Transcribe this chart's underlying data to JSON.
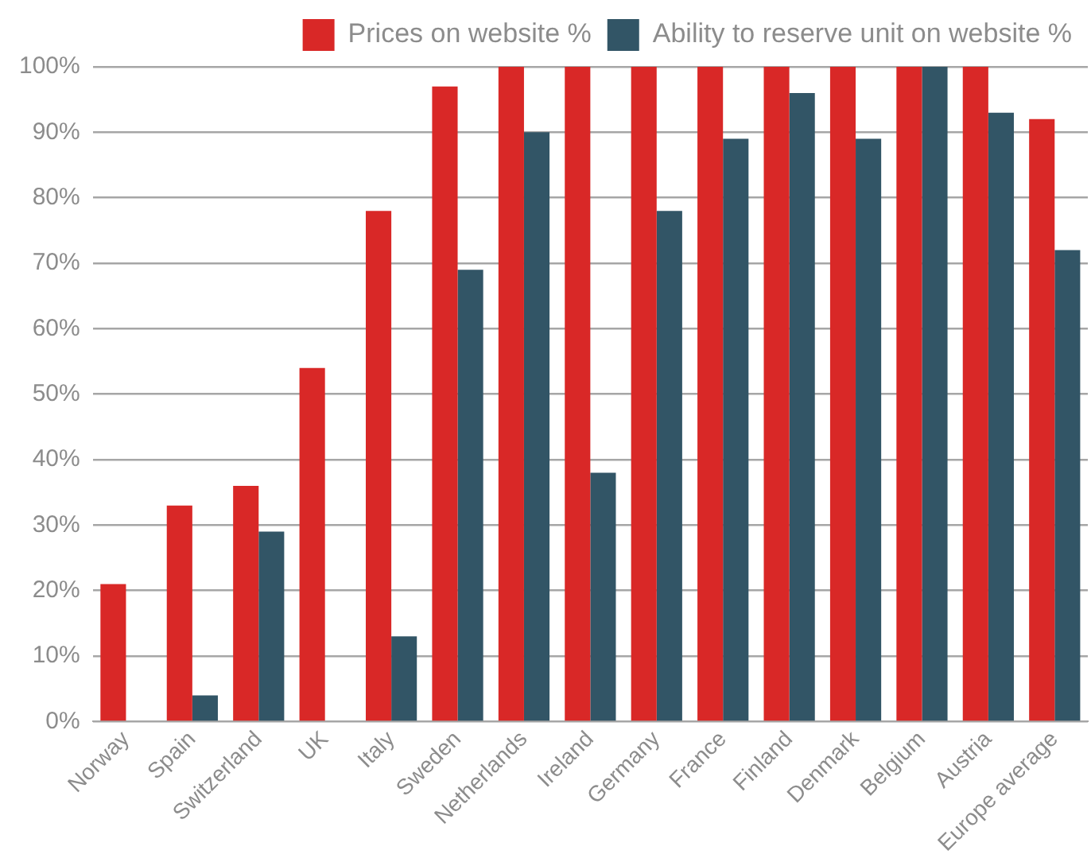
{
  "chart_data": {
    "type": "bar",
    "categories": [
      "Norway",
      "Spain",
      "Switzerland",
      "UK",
      "Italy",
      "Sweden",
      "Netherlands",
      "Ireland",
      "Germany",
      "France",
      "Finland",
      "Denmark",
      "Belgium",
      "Austria",
      "Europe average"
    ],
    "series": [
      {
        "name": "Prices on website %",
        "color": "#d92827",
        "values": [
          21,
          33,
          36,
          54,
          78,
          97,
          100,
          100,
          100,
          100,
          100,
          100,
          100,
          100,
          92
        ]
      },
      {
        "name": "Ability to reserve unit on website %",
        "color": "#325566",
        "values": [
          0,
          4,
          29,
          0,
          13,
          69,
          90,
          38,
          78,
          89,
          96,
          89,
          100,
          93,
          72
        ]
      }
    ],
    "ylim": [
      0,
      100
    ],
    "yticks": [
      {
        "value": 0,
        "label": "0%"
      },
      {
        "value": 10,
        "label": "10%"
      },
      {
        "value": 20,
        "label": "20%"
      },
      {
        "value": 30,
        "label": "30%"
      },
      {
        "value": 40,
        "label": "40%"
      },
      {
        "value": 50,
        "label": "50%"
      },
      {
        "value": 60,
        "label": "60%"
      },
      {
        "value": 70,
        "label": "70%"
      },
      {
        "value": 80,
        "label": "80%"
      },
      {
        "value": 90,
        "label": "90%"
      },
      {
        "value": 100,
        "label": "100%"
      }
    ],
    "grid": "y",
    "legend": "top right"
  }
}
